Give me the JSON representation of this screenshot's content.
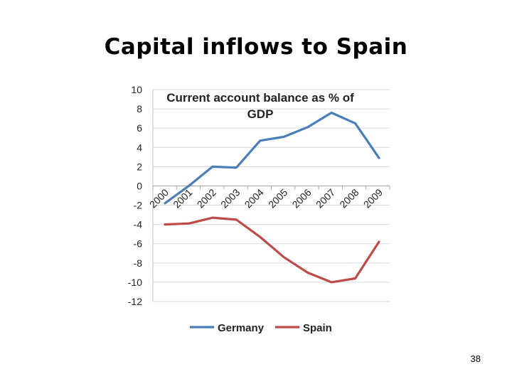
{
  "slide": {
    "title": "Capital inflows to Spain",
    "page_number": "38"
  },
  "chart_data": {
    "type": "line",
    "title": "Current account balance as % of GDP",
    "xlabel": "",
    "ylabel": "",
    "categories": [
      "2000",
      "2001",
      "2002",
      "2003",
      "2004",
      "2005",
      "2006",
      "2007",
      "2008",
      "2009"
    ],
    "ylim": [
      -12,
      10
    ],
    "yticks": [
      "10",
      "8",
      "6",
      "4",
      "2",
      "0",
      "-2",
      "-4",
      "-6",
      "-8",
      "-10",
      "-12"
    ],
    "grid": true,
    "legend": "bottom",
    "series": [
      {
        "name": "Germany",
        "color": "#4a7ebb",
        "values": [
          -1.8,
          0.0,
          2.0,
          1.9,
          4.7,
          5.1,
          6.1,
          7.6,
          6.5,
          2.9
        ]
      },
      {
        "name": "Spain",
        "color": "#be4b48",
        "values": [
          -4.0,
          -3.9,
          -3.3,
          -3.5,
          -5.3,
          -7.4,
          -9.0,
          -10.0,
          -9.6,
          -5.8
        ]
      }
    ]
  }
}
